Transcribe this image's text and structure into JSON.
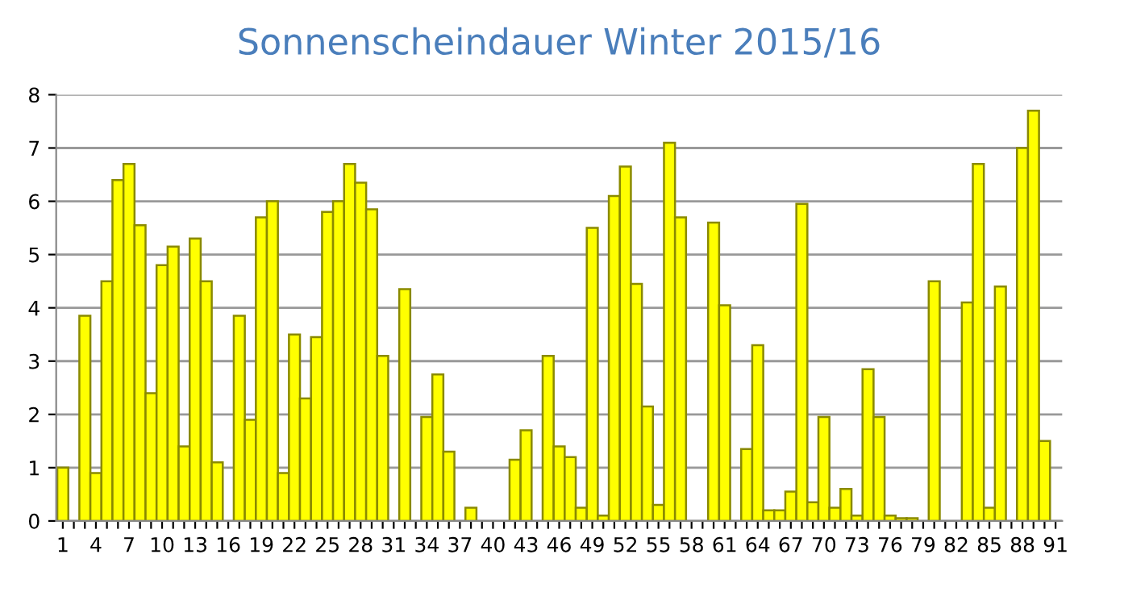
{
  "chart_data": {
    "type": "bar",
    "title": "Sonnenscheindauer Winter 2015/16",
    "categories": [
      "1",
      null,
      null,
      "4",
      null,
      null,
      "7",
      null,
      null,
      "10",
      null,
      null,
      "13",
      null,
      null,
      "16",
      null,
      null,
      "19",
      null,
      null,
      "22",
      null,
      null,
      "25",
      null,
      null,
      "28",
      null,
      null,
      "31",
      null,
      null,
      "34",
      null,
      null,
      "37",
      null,
      null,
      "40",
      null,
      null,
      "43",
      null,
      null,
      "46",
      null,
      null,
      "49",
      null,
      null,
      "52",
      null,
      null,
      "55",
      null,
      null,
      "58",
      null,
      null,
      "61",
      null,
      null,
      "64",
      null,
      null,
      "67",
      null,
      null,
      "70",
      null,
      null,
      "73",
      null,
      null,
      "76",
      null,
      null,
      "79",
      null,
      null,
      "82",
      null,
      null,
      "85",
      null,
      null,
      "88",
      null,
      null,
      "91"
    ],
    "values": [
      1.0,
      0,
      3.85,
      0.9,
      4.5,
      6.4,
      6.7,
      5.55,
      2.4,
      4.8,
      5.15,
      1.4,
      5.3,
      4.5,
      1.1,
      0,
      3.85,
      1.9,
      5.7,
      6.0,
      0.9,
      3.5,
      2.3,
      3.45,
      5.8,
      6.0,
      6.7,
      6.35,
      5.85,
      3.1,
      0,
      4.35,
      0,
      1.95,
      2.75,
      1.3,
      0,
      0.25,
      0,
      0,
      0,
      1.15,
      1.7,
      0,
      3.1,
      1.4,
      1.2,
      0.25,
      5.5,
      0.1,
      6.1,
      6.65,
      4.45,
      2.15,
      0.3,
      7.1,
      5.7,
      0,
      0,
      5.6,
      4.05,
      0,
      1.35,
      3.3,
      0.2,
      0.2,
      0.55,
      5.95,
      0.35,
      1.95,
      0.25,
      0.6,
      0.1,
      2.85,
      1.95,
      0.1,
      0.05,
      0.05,
      0,
      4.5,
      0,
      0,
      4.1,
      6.7,
      0.25,
      4.4,
      0,
      7.0,
      7.7,
      1.5,
      0
    ],
    "color": "#ffff00",
    "ylim": [
      0,
      8
    ],
    "yticks": [
      0,
      1,
      2,
      3,
      4,
      5,
      6,
      7,
      8
    ],
    "grid": "y",
    "legend": false
  }
}
